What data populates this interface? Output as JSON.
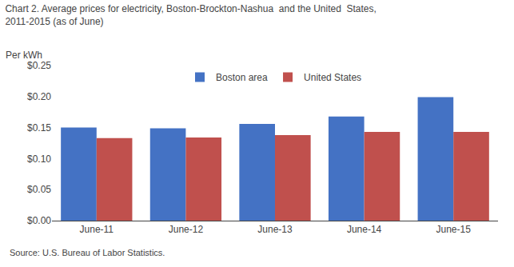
{
  "chart_data": {
    "type": "bar",
    "title": "Chart 2. Average prices for electricity, Boston-Brockton-Nashua  and the United  States,\n2011-2015 (as of June)",
    "ylabel": "Per kWh",
    "annotations": [
      "Source: U.S. Bureau of Labor Statistics."
    ],
    "categories": [
      "June-11",
      "June-12",
      "June-13",
      "June-14",
      "June-15"
    ],
    "series": [
      {
        "name": "Boston area",
        "color": "#4472C4",
        "values": [
          0.15,
          0.149,
          0.156,
          0.168,
          0.199
        ]
      },
      {
        "name": "United States",
        "color": "#C0504D",
        "values": [
          0.133,
          0.134,
          0.138,
          0.143,
          0.143
        ]
      }
    ],
    "ylim": [
      0,
      0.25
    ],
    "yticks": [
      {
        "value": 0.0,
        "label": "$0.00"
      },
      {
        "value": 0.05,
        "label": "$0.05"
      },
      {
        "value": 0.1,
        "label": "$0.10"
      },
      {
        "value": 0.15,
        "label": "$0.15"
      },
      {
        "value": 0.2,
        "label": "$0.20"
      },
      {
        "value": 0.25,
        "label": "$0.25"
      }
    ],
    "grid": false,
    "legend": "top"
  }
}
